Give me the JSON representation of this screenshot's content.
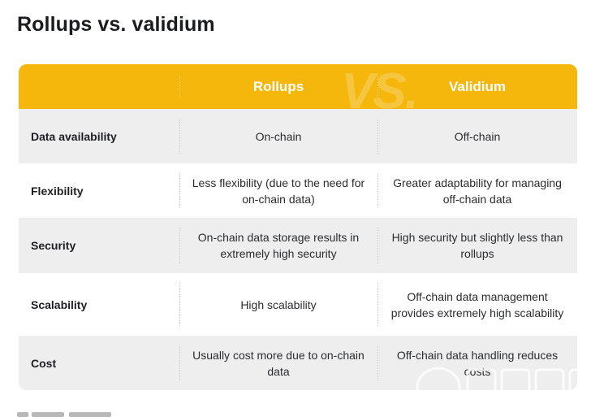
{
  "page": {
    "title": "Rollups vs. validium"
  },
  "table": {
    "watermark": "VS.",
    "columns": [
      "Rollups",
      "Validium"
    ],
    "rows": [
      {
        "label": "Data availability",
        "rollups": "On-chain",
        "validium": "Off-chain"
      },
      {
        "label": "Flexibility",
        "rollups": "Less flexibility (due to the need for on-chain data)",
        "validium": "Greater adaptability for managing off-chain data"
      },
      {
        "label": "Security",
        "rollups": "On-chain data storage results in extremely high security",
        "validium": "High security but slightly less than rollups"
      },
      {
        "label": "Scalability",
        "rollups": "High scalability",
        "validium": "Off-chain data management provides extremely high scalability"
      },
      {
        "label": "Cost",
        "rollups": "Usually cost more due to on-chain data",
        "validium": "Off-chain data handling reduces costs"
      }
    ]
  },
  "colors": {
    "header": "#f5b70b",
    "row_grey": "#eeeeee",
    "row_white": "#ffffff"
  }
}
